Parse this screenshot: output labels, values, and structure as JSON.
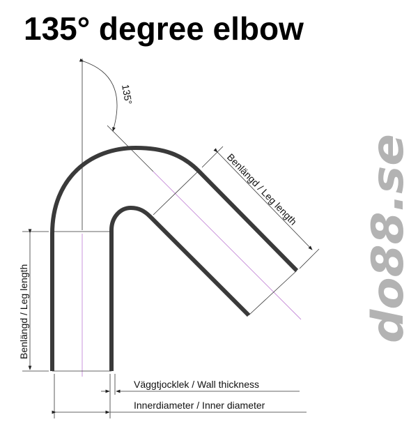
{
  "title": "135° degree elbow",
  "angle_label": "135°",
  "leg_length_label": "Benlängd / Leg length",
  "wall_thickness_label": "Väggtjocklek / Wall thickness",
  "inner_diameter_label": "Innerdiameter / Inner diameter",
  "logo": "do88.se",
  "colors": {
    "tube": "#3a3a3a",
    "centerline": "#c58ad8",
    "logo": "#b3b3b3"
  }
}
